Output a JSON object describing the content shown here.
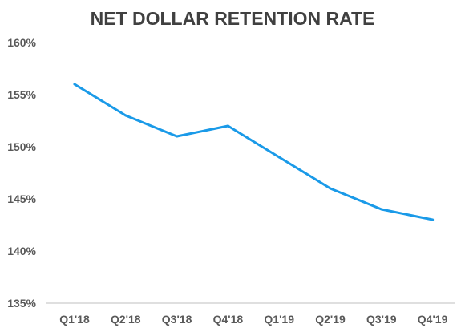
{
  "chart_data": {
    "type": "line",
    "title": "NET DOLLAR RETENTION RATE",
    "xlabel": "",
    "ylabel": "",
    "categories": [
      "Q1'18",
      "Q2'18",
      "Q3'18",
      "Q4'18",
      "Q1'19",
      "Q2'19",
      "Q3'19",
      "Q4'19"
    ],
    "series": [
      {
        "values": [
          156,
          153,
          151,
          152,
          149,
          146,
          144,
          143
        ]
      }
    ],
    "ylim": [
      135,
      160
    ],
    "yticks": [
      135,
      140,
      145,
      150,
      155,
      160
    ],
    "ytick_labels": [
      "135%",
      "140%",
      "145%",
      "150%",
      "155%",
      "160%"
    ],
    "grid": false,
    "legend": "none",
    "colors": {
      "line": "#1a9ae8",
      "axis": "#bfbfbf"
    }
  }
}
